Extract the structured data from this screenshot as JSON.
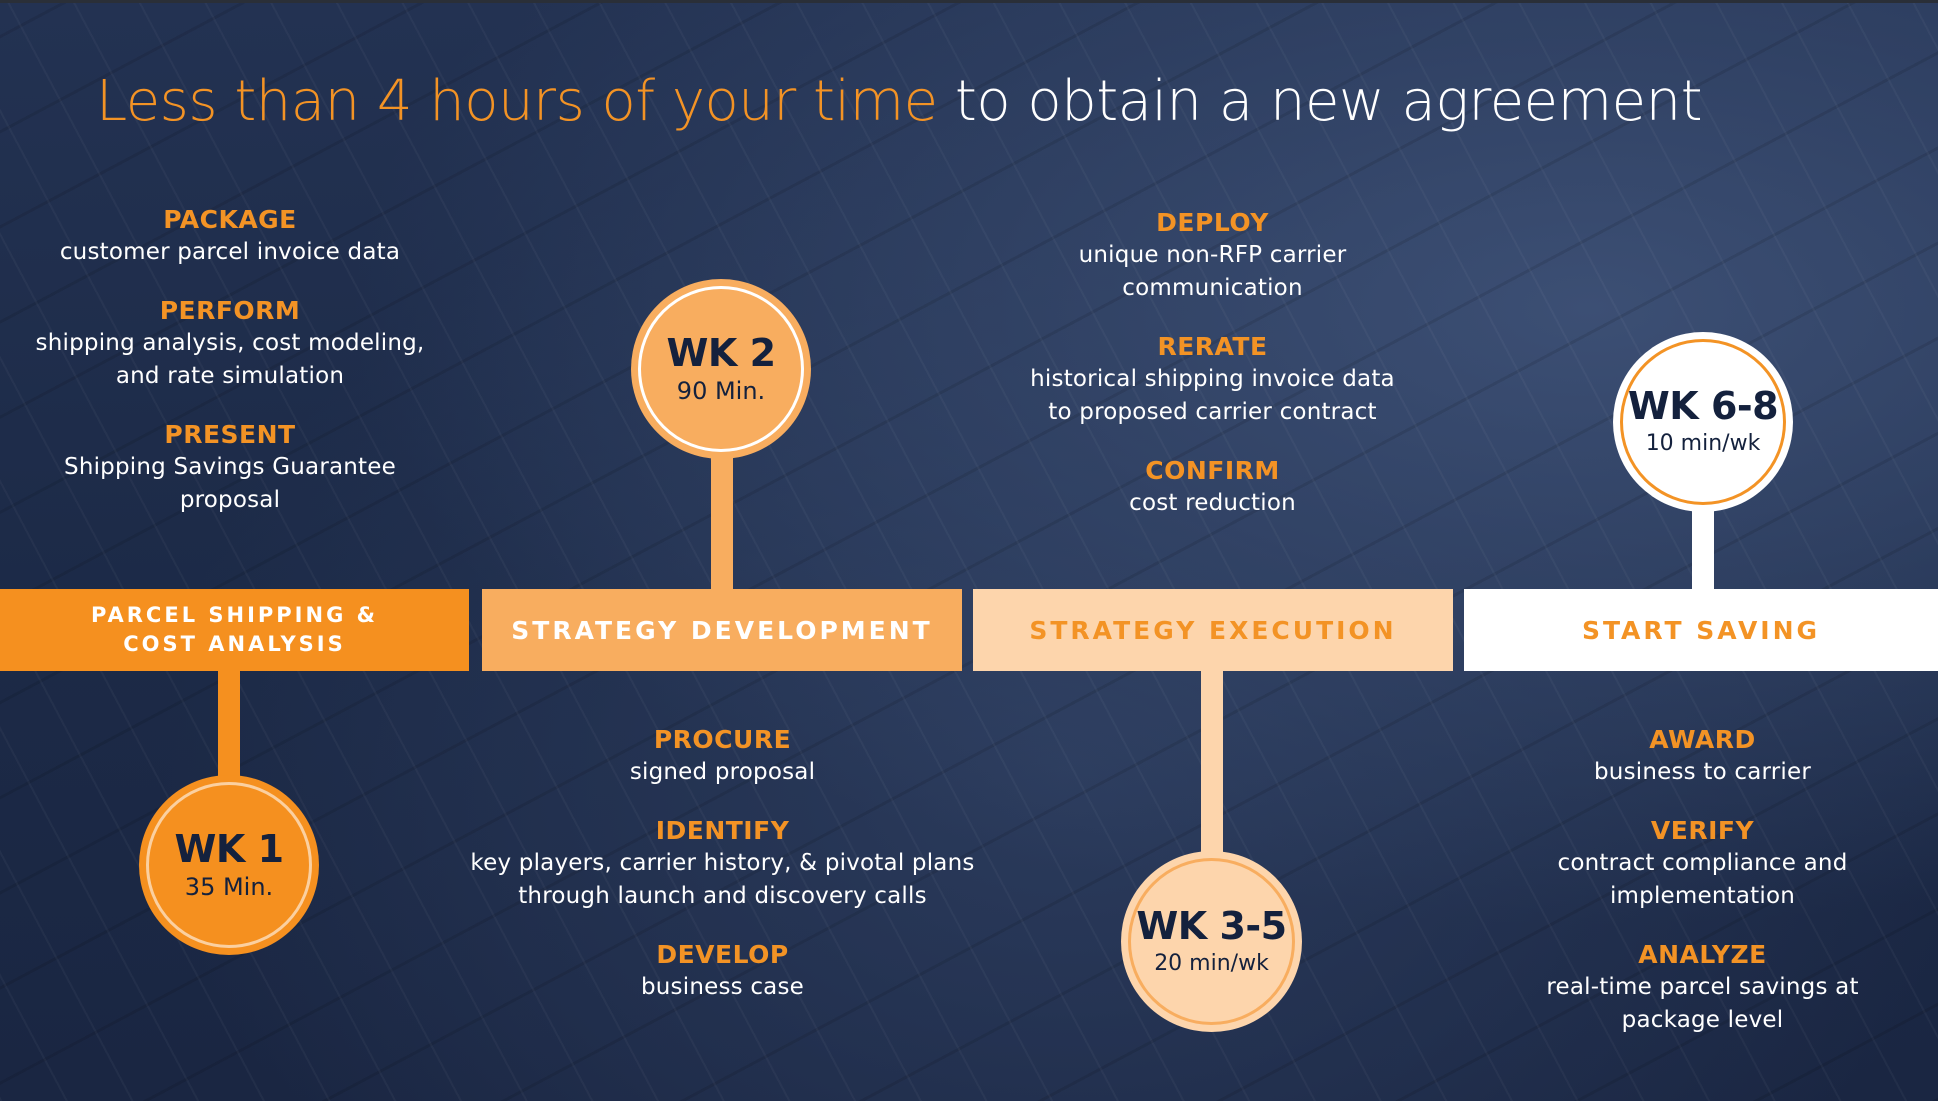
{
  "title": {
    "highlight": "Less than 4 hours of your time",
    "rest": " to obtain a new agreement"
  },
  "colors": {
    "background": "#1f2d4c",
    "orange": "#f39325",
    "phase1": "#f5901f",
    "phase2": "#f8ad5f",
    "phase3": "#fdd5ac",
    "phase4": "#ffffff",
    "bubble_text": "#14213d"
  },
  "phases": [
    {
      "label_line1": "PARCEL SHIPPING &",
      "label_line2": "COST ANALYSIS",
      "week": "WK 1",
      "duration": "35 Min.",
      "steps": [
        {
          "head": "PACKAGE",
          "desc": [
            "customer parcel invoice data"
          ]
        },
        {
          "head": "PERFORM",
          "desc": [
            "shipping analysis, cost modeling,",
            "and rate simulation"
          ]
        },
        {
          "head": "PRESENT",
          "desc": [
            "Shipping Savings Guarantee",
            "proposal"
          ]
        }
      ]
    },
    {
      "label": "STRATEGY DEVELOPMENT",
      "week": "WK 2",
      "duration": "90 Min.",
      "steps": [
        {
          "head": "PROCURE",
          "desc": [
            "signed proposal"
          ]
        },
        {
          "head": "IDENTIFY",
          "desc": [
            "key players, carrier history, & pivotal plans",
            "through launch and discovery calls"
          ]
        },
        {
          "head": "DEVELOP",
          "desc": [
            "business case"
          ]
        }
      ]
    },
    {
      "label": "STRATEGY EXECUTION",
      "week": "WK 3-5",
      "duration": "20 min/wk",
      "steps": [
        {
          "head": "DEPLOY",
          "desc": [
            "unique non-RFP carrier",
            "communication"
          ]
        },
        {
          "head": "RERATE",
          "desc": [
            "historical shipping invoice data",
            "to proposed carrier contract"
          ]
        },
        {
          "head": "CONFIRM",
          "desc": [
            "cost reduction"
          ]
        }
      ]
    },
    {
      "label": "START SAVING",
      "week": "WK 6-8",
      "duration": "10 min/wk",
      "steps": [
        {
          "head": "AWARD",
          "desc": [
            "business to carrier"
          ]
        },
        {
          "head": "VERIFY",
          "desc": [
            "contract compliance and",
            "implementation"
          ]
        },
        {
          "head": "ANALYZE",
          "desc": [
            "real-time parcel savings at",
            "package level"
          ]
        }
      ]
    }
  ]
}
